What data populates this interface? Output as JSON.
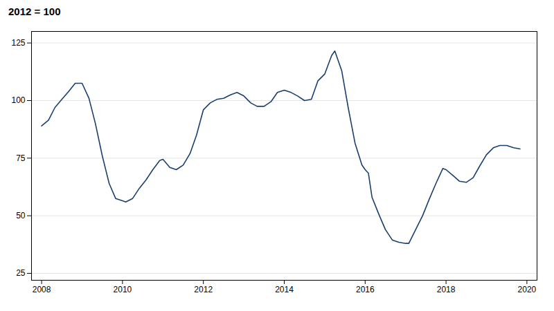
{
  "chart_data": {
    "type": "line",
    "title": "2012 = 100",
    "color": "#1a3f6f",
    "grid": true,
    "xlim": [
      2007.75,
      2020.25
    ],
    "xticks": [
      2008,
      2010,
      2012,
      2014,
      2016,
      2018,
      2020
    ],
    "ylim": [
      22,
      130
    ],
    "yticks": [
      25,
      50,
      75,
      100,
      125
    ],
    "x": [
      2008.0,
      2008.17,
      2008.33,
      2008.5,
      2008.67,
      2008.83,
      2009.0,
      2009.17,
      2009.33,
      2009.5,
      2009.67,
      2009.83,
      2010.0,
      2010.08,
      2010.25,
      2010.42,
      2010.58,
      2010.75,
      2010.92,
      2011.0,
      2011.17,
      2011.33,
      2011.5,
      2011.67,
      2011.83,
      2012.0,
      2012.17,
      2012.33,
      2012.5,
      2012.67,
      2012.83,
      2013.0,
      2013.17,
      2013.33,
      2013.5,
      2013.67,
      2013.83,
      2014.0,
      2014.17,
      2014.33,
      2014.5,
      2014.67,
      2014.83,
      2015.0,
      2015.17,
      2015.25,
      2015.42,
      2015.58,
      2015.75,
      2015.92,
      2016.0,
      2016.08,
      2016.17,
      2016.33,
      2016.5,
      2016.67,
      2016.83,
      2017.0,
      2017.08,
      2017.25,
      2017.42,
      2017.58,
      2017.75,
      2017.92,
      2018.0,
      2018.17,
      2018.33,
      2018.5,
      2018.67,
      2018.83,
      2019.0,
      2019.17,
      2019.33,
      2019.5,
      2019.67,
      2019.83
    ],
    "values": [
      89.0,
      91.5,
      97.0,
      100.5,
      104.0,
      107.5,
      107.5,
      101.0,
      90.0,
      76.0,
      64.0,
      57.5,
      56.5,
      56.0,
      57.5,
      62.0,
      65.5,
      70.0,
      74.0,
      74.5,
      71.0,
      70.0,
      72.0,
      77.0,
      85.0,
      96.0,
      99.0,
      100.5,
      101.0,
      102.5,
      103.5,
      102.0,
      99.0,
      97.5,
      97.5,
      99.5,
      103.5,
      104.5,
      103.5,
      102.0,
      100.0,
      100.5,
      108.5,
      111.5,
      119.5,
      121.5,
      113.0,
      97.0,
      81.5,
      72.0,
      70.0,
      68.5,
      58.0,
      51.0,
      44.0,
      39.5,
      38.5,
      38.0,
      38.0,
      44.0,
      50.0,
      57.0,
      64.0,
      70.5,
      70.0,
      67.5,
      65.0,
      64.5,
      66.5,
      71.5,
      76.5,
      79.5,
      80.5,
      80.5,
      79.5,
      79.0
    ]
  }
}
